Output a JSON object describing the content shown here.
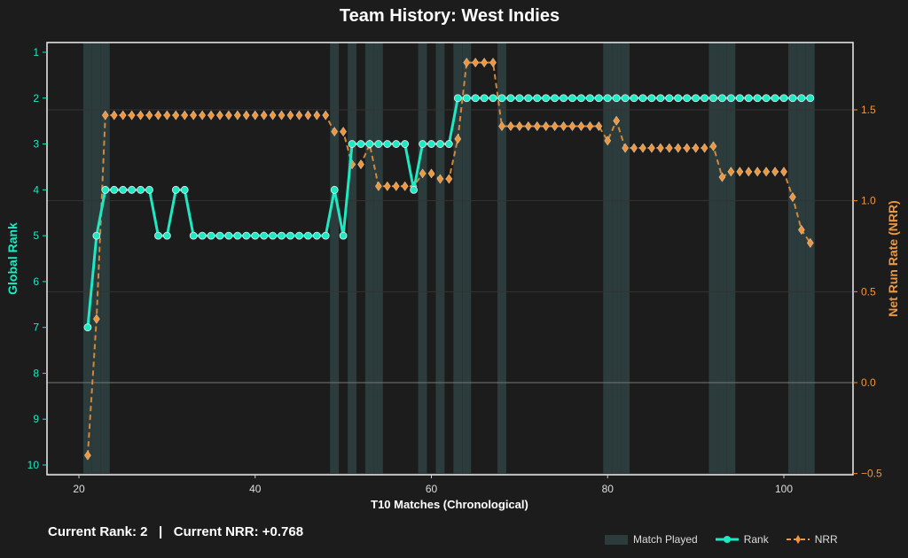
{
  "chart_data": {
    "type": "line",
    "title": "Team History: West Indies",
    "xlabel": "T10 Matches (Chronological)",
    "ylabel_left": "Global Rank",
    "ylabel_right": "Net Run Rate (NRR)",
    "xlim": [
      16,
      106
    ],
    "ylim_left": [
      10.2,
      0.8
    ],
    "ylim_right": [
      -0.5,
      1.9
    ],
    "x_ticks": [
      20,
      40,
      60,
      80,
      100
    ],
    "y_ticks_left": [
      1,
      2,
      3,
      4,
      5,
      6,
      7,
      8,
      9,
      10
    ],
    "y_ticks_right": [
      -0.5,
      0.0,
      0.5,
      1.0,
      1.5
    ],
    "y_tick_labels_right": [
      "−0.5",
      "0.0",
      "0.5",
      "1.0",
      "1.5"
    ],
    "grid": true,
    "legend_placement": "bottom-right",
    "legend": [
      "Match Played",
      "Rank",
      "NRR"
    ],
    "match_played": [
      21,
      22,
      23,
      49,
      51,
      53,
      54,
      59,
      61,
      63,
      64,
      68,
      80,
      81,
      82,
      92,
      93,
      94,
      101,
      102,
      103
    ],
    "x_start": 21,
    "series": [
      {
        "name": "Rank",
        "color": "#1de9c3",
        "values": [
          7,
          5,
          4,
          4,
          4,
          4,
          4,
          4,
          5,
          5,
          4,
          4,
          5,
          5,
          5,
          5,
          5,
          5,
          5,
          5,
          5,
          5,
          5,
          5,
          5,
          5,
          5,
          5,
          4,
          5,
          3,
          3,
          3,
          3,
          3,
          3,
          3,
          4,
          3,
          3,
          3,
          3,
          2,
          2,
          2,
          2,
          2,
          2,
          2,
          2,
          2,
          2,
          2,
          2,
          2,
          2,
          2,
          2,
          2,
          2,
          2,
          2,
          2,
          2,
          2,
          2,
          2,
          2,
          2,
          2,
          2,
          2,
          2,
          2,
          2,
          2,
          2,
          2,
          2,
          2,
          2,
          2,
          2
        ]
      },
      {
        "name": "NRR",
        "color": "#f0963c",
        "values": [
          -0.4,
          0.35,
          1.47,
          1.47,
          1.47,
          1.47,
          1.47,
          1.47,
          1.47,
          1.47,
          1.47,
          1.47,
          1.47,
          1.47,
          1.47,
          1.47,
          1.47,
          1.47,
          1.47,
          1.47,
          1.47,
          1.47,
          1.47,
          1.47,
          1.47,
          1.47,
          1.47,
          1.47,
          1.38,
          1.38,
          1.2,
          1.2,
          1.31,
          1.08,
          1.08,
          1.08,
          1.08,
          1.08,
          1.15,
          1.15,
          1.12,
          1.12,
          1.34,
          1.76,
          1.76,
          1.76,
          1.76,
          1.41,
          1.41,
          1.41,
          1.41,
          1.41,
          1.41,
          1.41,
          1.41,
          1.41,
          1.41,
          1.41,
          1.41,
          1.33,
          1.44,
          1.29,
          1.29,
          1.29,
          1.29,
          1.29,
          1.29,
          1.29,
          1.29,
          1.29,
          1.29,
          1.3,
          1.13,
          1.16,
          1.16,
          1.16,
          1.16,
          1.16,
          1.16,
          1.16,
          1.02,
          0.84,
          0.768
        ]
      }
    ]
  },
  "footer": {
    "rank_text": "Current Rank: 2",
    "separator": "|",
    "nrr_text": "Current NRR: +0.768"
  },
  "colors": {
    "rank": "#1de9c3",
    "nrr": "#f0963c",
    "band": "#2c3b3b",
    "bg": "#1c1c1c"
  }
}
